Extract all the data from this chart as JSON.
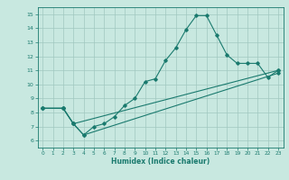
{
  "title": "",
  "xlabel": "Humidex (Indice chaleur)",
  "ylabel": "",
  "xlim": [
    -0.5,
    23.5
  ],
  "ylim": [
    5.5,
    15.5
  ],
  "xticks": [
    0,
    1,
    2,
    3,
    4,
    5,
    6,
    7,
    8,
    9,
    10,
    11,
    12,
    13,
    14,
    15,
    16,
    17,
    18,
    19,
    20,
    21,
    22,
    23
  ],
  "yticks": [
    6,
    7,
    8,
    9,
    10,
    11,
    12,
    13,
    14,
    15
  ],
  "color": "#1a7a6e",
  "bg_color": "#c8e8e0",
  "grid_color": "#a0c8c0",
  "line1_x": [
    0,
    2,
    3,
    4,
    5,
    6,
    7,
    8,
    9,
    10,
    11,
    12,
    13,
    14,
    15,
    16,
    17,
    18,
    19,
    20,
    21,
    22,
    23
  ],
  "line1_y": [
    8.3,
    8.3,
    7.2,
    6.4,
    7.0,
    7.2,
    7.7,
    8.5,
    9.0,
    10.2,
    10.4,
    11.7,
    12.6,
    13.9,
    14.9,
    14.9,
    13.5,
    12.1,
    11.5,
    11.5,
    11.5,
    10.5,
    11.0
  ],
  "line2_x": [
    0,
    2,
    3,
    23
  ],
  "line2_y": [
    8.3,
    8.3,
    7.2,
    11.0
  ],
  "line3_x": [
    0,
    2,
    3,
    4,
    23
  ],
  "line3_y": [
    8.3,
    8.3,
    7.2,
    6.4,
    10.8
  ],
  "marker": "D",
  "markersize": 1.8,
  "linewidth": 0.8
}
